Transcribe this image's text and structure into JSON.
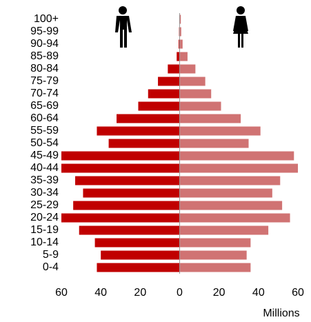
{
  "chart_data": {
    "type": "pyramid",
    "categories": [
      "0-4",
      "5-9",
      "10-14",
      "15-19",
      "20-24",
      "25-29",
      "30-34",
      "35-39",
      "40-44",
      "45-49",
      "50-54",
      "55-59",
      "60-64",
      "65-69",
      "70-74",
      "75-79",
      "80-84",
      "85-89",
      "90-94",
      "95-99",
      "100+"
    ],
    "series": [
      {
        "color": "#c00000",
        "values": [
          -42,
          -40,
          -43,
          -51,
          -60,
          -54,
          -49,
          -53,
          -60,
          -60,
          -36,
          -42,
          -32,
          -21,
          -16,
          -11,
          -6,
          -1.5,
          -0.5,
          -0.3,
          -0.2
        ]
      },
      {
        "color": "#d07373",
        "values": [
          36,
          34,
          36,
          45,
          56,
          52,
          47,
          51,
          60,
          58,
          35,
          41,
          31,
          21,
          16,
          13,
          8,
          4,
          1.5,
          0.8,
          0.6
        ]
      }
    ],
    "xlim": [
      -60,
      60
    ],
    "xticks": [
      {
        "value": -60,
        "label": "60"
      },
      {
        "value": -40,
        "label": "40"
      },
      {
        "value": -20,
        "label": "20"
      },
      0,
      20,
      40,
      60
    ],
    "x_label": "Millions"
  }
}
